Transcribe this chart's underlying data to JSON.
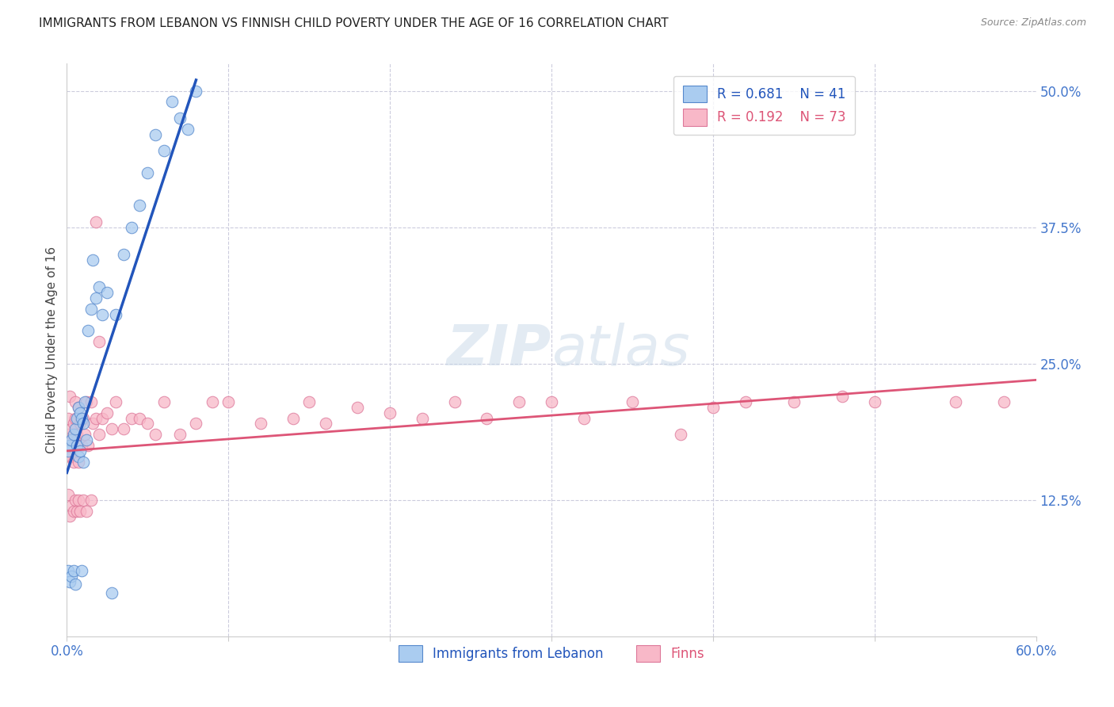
{
  "title": "IMMIGRANTS FROM LEBANON VS FINNISH CHILD POVERTY UNDER THE AGE OF 16 CORRELATION CHART",
  "source": "Source: ZipAtlas.com",
  "ylabel": "Child Poverty Under the Age of 16",
  "legend_label_blue": "Immigrants from Lebanon",
  "legend_label_pink": "Finns",
  "xmin": 0.0,
  "xmax": 0.6,
  "ymin": 0.0,
  "ymax": 0.525,
  "yticks": [
    0.125,
    0.25,
    0.375,
    0.5
  ],
  "ytick_labels": [
    "12.5%",
    "25.0%",
    "37.5%",
    "50.0%"
  ],
  "blue_x": [
    0.001,
    0.001,
    0.002,
    0.002,
    0.003,
    0.003,
    0.004,
    0.004,
    0.005,
    0.005,
    0.006,
    0.006,
    0.007,
    0.007,
    0.008,
    0.008,
    0.009,
    0.009,
    0.01,
    0.01,
    0.011,
    0.012,
    0.013,
    0.015,
    0.016,
    0.018,
    0.02,
    0.022,
    0.025,
    0.028,
    0.03,
    0.035,
    0.04,
    0.045,
    0.05,
    0.055,
    0.06,
    0.065,
    0.07,
    0.075,
    0.08
  ],
  "blue_y": [
    0.17,
    0.06,
    0.175,
    0.05,
    0.18,
    0.055,
    0.185,
    0.06,
    0.19,
    0.048,
    0.2,
    0.175,
    0.21,
    0.165,
    0.205,
    0.17,
    0.2,
    0.06,
    0.195,
    0.16,
    0.215,
    0.18,
    0.28,
    0.3,
    0.345,
    0.31,
    0.32,
    0.295,
    0.315,
    0.04,
    0.295,
    0.35,
    0.375,
    0.395,
    0.425,
    0.46,
    0.445,
    0.49,
    0.475,
    0.465,
    0.5
  ],
  "pink_x": [
    0.001,
    0.001,
    0.002,
    0.002,
    0.002,
    0.003,
    0.003,
    0.004,
    0.004,
    0.005,
    0.005,
    0.006,
    0.006,
    0.007,
    0.007,
    0.008,
    0.009,
    0.01,
    0.011,
    0.012,
    0.013,
    0.015,
    0.016,
    0.018,
    0.02,
    0.022,
    0.025,
    0.028,
    0.03,
    0.035,
    0.04,
    0.045,
    0.05,
    0.055,
    0.06,
    0.07,
    0.08,
    0.09,
    0.1,
    0.12,
    0.14,
    0.15,
    0.16,
    0.18,
    0.2,
    0.22,
    0.24,
    0.26,
    0.28,
    0.3,
    0.32,
    0.35,
    0.38,
    0.4,
    0.42,
    0.45,
    0.48,
    0.5,
    0.55,
    0.58,
    0.001,
    0.002,
    0.003,
    0.004,
    0.005,
    0.006,
    0.007,
    0.008,
    0.01,
    0.012,
    0.015,
    0.018,
    0.02
  ],
  "pink_y": [
    0.185,
    0.2,
    0.18,
    0.165,
    0.22,
    0.19,
    0.165,
    0.195,
    0.16,
    0.215,
    0.2,
    0.185,
    0.18,
    0.21,
    0.16,
    0.195,
    0.175,
    0.2,
    0.185,
    0.215,
    0.175,
    0.215,
    0.195,
    0.2,
    0.185,
    0.2,
    0.205,
    0.19,
    0.215,
    0.19,
    0.2,
    0.2,
    0.195,
    0.185,
    0.215,
    0.185,
    0.195,
    0.215,
    0.215,
    0.195,
    0.2,
    0.215,
    0.195,
    0.21,
    0.205,
    0.2,
    0.215,
    0.2,
    0.215,
    0.215,
    0.2,
    0.215,
    0.185,
    0.21,
    0.215,
    0.215,
    0.22,
    0.215,
    0.215,
    0.215,
    0.13,
    0.11,
    0.12,
    0.115,
    0.125,
    0.115,
    0.125,
    0.115,
    0.125,
    0.115,
    0.125,
    0.38,
    0.27
  ],
  "blue_line_x0": 0.0,
  "blue_line_x1": 0.08,
  "blue_line_y0": 0.15,
  "blue_line_y1": 0.51,
  "pink_line_x0": 0.0,
  "pink_line_x1": 0.6,
  "pink_line_y0": 0.17,
  "pink_line_y1": 0.235,
  "blue_color": "#aaccf0",
  "blue_edge_color": "#5588cc",
  "pink_color": "#f8b8c8",
  "pink_edge_color": "#dd7799",
  "blue_line_color": "#2255bb",
  "pink_line_color": "#dd5577",
  "background_color": "#ffffff",
  "grid_color": "#ccccdd",
  "title_color": "#222222",
  "axis_label_color": "#444444",
  "tick_color": "#4477cc",
  "source_color": "#888888",
  "watermark_color": "#c8d8e8",
  "title_fontsize": 11,
  "source_fontsize": 9,
  "tick_fontsize": 12,
  "ylabel_fontsize": 11,
  "scatter_size": 110,
  "scatter_alpha": 0.75
}
